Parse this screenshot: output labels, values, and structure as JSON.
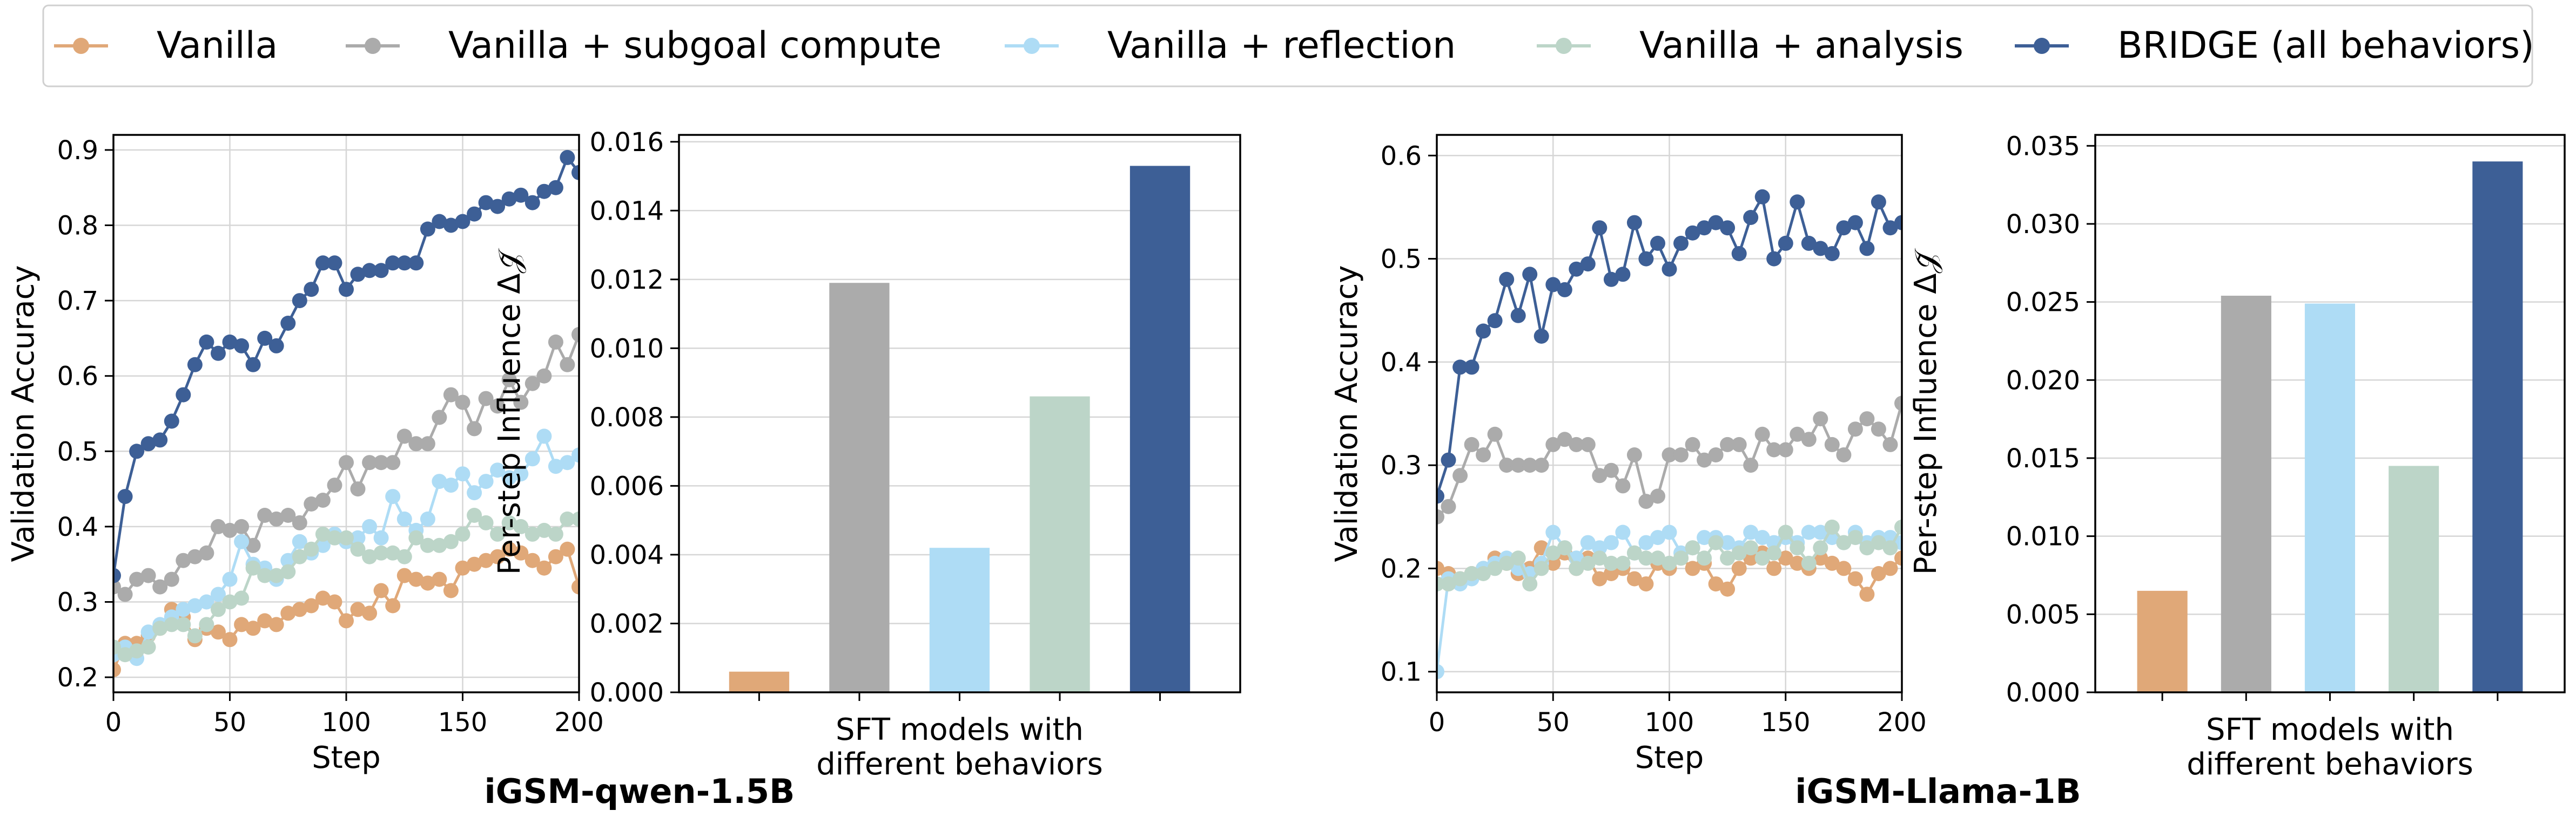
{
  "legend": [
    {
      "name": "Vanilla",
      "color": "#E0A878"
    },
    {
      "name": "Vanilla + subgoal compute",
      "color": "#ABABAB"
    },
    {
      "name": "Vanilla + reflection",
      "color": "#AEDCF5"
    },
    {
      "name": "Vanilla + analysis",
      "color": "#BCD5C8"
    },
    {
      "name": "BRIDGE (all behaviors)",
      "color": "#3D5F96"
    }
  ],
  "group_titles": [
    "iGSM-qwen-1.5B",
    "iGSM-Llama-1B"
  ],
  "chart_data": [
    {
      "type": "line",
      "xlabel": "Step",
      "ylabel": "Validation Accuracy",
      "xlim": [
        0,
        200
      ],
      "ylim": [
        0.18,
        0.92
      ],
      "xticks": [
        0,
        50,
        100,
        150,
        200
      ],
      "yticks": [
        0.2,
        0.3,
        0.4,
        0.5,
        0.6,
        0.7,
        0.8,
        0.9
      ],
      "ytick_labels": [
        "0.2",
        "0.3",
        "0.4",
        "0.5",
        "0.6",
        "0.7",
        "0.8",
        "0.9"
      ],
      "grid": true,
      "x": [
        0,
        5,
        10,
        15,
        20,
        25,
        30,
        35,
        40,
        45,
        50,
        55,
        60,
        65,
        70,
        75,
        80,
        85,
        90,
        95,
        100,
        105,
        110,
        115,
        120,
        125,
        130,
        135,
        140,
        145,
        150,
        155,
        160,
        165,
        170,
        175,
        180,
        185,
        190,
        195,
        200
      ],
      "series": [
        {
          "name": "Vanilla",
          "values": [
            0.21,
            0.245,
            0.245,
            0.255,
            0.265,
            0.29,
            0.28,
            0.25,
            0.265,
            0.26,
            0.25,
            0.27,
            0.265,
            0.275,
            0.27,
            0.285,
            0.29,
            0.295,
            0.305,
            0.3,
            0.275,
            0.29,
            0.285,
            0.315,
            0.295,
            0.335,
            0.33,
            0.325,
            0.33,
            0.315,
            0.345,
            0.35,
            0.355,
            0.36,
            0.37,
            0.365,
            0.355,
            0.345,
            0.36,
            0.37,
            0.32
          ]
        },
        {
          "name": "Vanilla + subgoal compute",
          "values": [
            0.32,
            0.31,
            0.33,
            0.335,
            0.32,
            0.33,
            0.355,
            0.36,
            0.365,
            0.4,
            0.395,
            0.4,
            0.375,
            0.415,
            0.41,
            0.415,
            0.405,
            0.43,
            0.435,
            0.455,
            0.485,
            0.45,
            0.485,
            0.485,
            0.485,
            0.52,
            0.51,
            0.51,
            0.545,
            0.575,
            0.565,
            0.53,
            0.57,
            0.56,
            0.595,
            0.565,
            0.59,
            0.6,
            0.645,
            0.615,
            0.655
          ]
        },
        {
          "name": "Vanilla + reflection",
          "values": [
            0.23,
            0.24,
            0.225,
            0.26,
            0.27,
            0.28,
            0.29,
            0.295,
            0.3,
            0.31,
            0.33,
            0.38,
            0.35,
            0.345,
            0.33,
            0.355,
            0.38,
            0.365,
            0.375,
            0.39,
            0.38,
            0.385,
            0.4,
            0.385,
            0.44,
            0.41,
            0.395,
            0.41,
            0.46,
            0.455,
            0.47,
            0.445,
            0.46,
            0.475,
            0.465,
            0.47,
            0.49,
            0.52,
            0.48,
            0.485,
            0.495
          ]
        },
        {
          "name": "Vanilla + analysis",
          "values": [
            0.24,
            0.23,
            0.235,
            0.24,
            0.265,
            0.27,
            0.27,
            0.255,
            0.27,
            0.29,
            0.3,
            0.305,
            0.345,
            0.335,
            0.335,
            0.34,
            0.36,
            0.37,
            0.39,
            0.385,
            0.385,
            0.37,
            0.36,
            0.365,
            0.365,
            0.36,
            0.385,
            0.375,
            0.375,
            0.38,
            0.39,
            0.415,
            0.405,
            0.39,
            0.405,
            0.4,
            0.39,
            0.395,
            0.39,
            0.41,
            0.41
          ]
        },
        {
          "name": "BRIDGE (all behaviors)",
          "values": [
            0.335,
            0.44,
            0.5,
            0.51,
            0.515,
            0.54,
            0.575,
            0.615,
            0.645,
            0.63,
            0.645,
            0.64,
            0.615,
            0.65,
            0.64,
            0.67,
            0.7,
            0.715,
            0.75,
            0.75,
            0.715,
            0.735,
            0.74,
            0.74,
            0.75,
            0.75,
            0.75,
            0.795,
            0.805,
            0.8,
            0.805,
            0.815,
            0.83,
            0.825,
            0.835,
            0.84,
            0.83,
            0.845,
            0.85,
            0.89,
            0.87
          ]
        }
      ]
    },
    {
      "type": "bar",
      "xlabel": "SFT models with\ndifferent behaviors",
      "ylabel": "Per-step Influence Δ𝒥̃",
      "categories": [
        "Vanilla",
        "Vanilla + subgoal compute",
        "Vanilla + reflection",
        "Vanilla + analysis",
        "BRIDGE (all behaviors)"
      ],
      "values": [
        0.0006,
        0.0119,
        0.0042,
        0.0086,
        0.0153
      ],
      "ylim": [
        0,
        0.0162
      ],
      "yticks": [
        0,
        0.002,
        0.004,
        0.006,
        0.008,
        0.01,
        0.012,
        0.014,
        0.016
      ],
      "ytick_labels": [
        "0.000",
        "0.002",
        "0.004",
        "0.006",
        "0.008",
        "0.010",
        "0.012",
        "0.014",
        "0.016"
      ],
      "grid": true
    },
    {
      "type": "line",
      "xlabel": "Step",
      "ylabel": "Validation Accuracy",
      "xlim": [
        0,
        200
      ],
      "ylim": [
        0.08,
        0.62
      ],
      "xticks": [
        0,
        50,
        100,
        150,
        200
      ],
      "yticks": [
        0.1,
        0.2,
        0.3,
        0.4,
        0.5,
        0.6
      ],
      "ytick_labels": [
        "0.1",
        "0.2",
        "0.3",
        "0.4",
        "0.5",
        "0.6"
      ],
      "grid": true,
      "x": [
        0,
        5,
        10,
        15,
        20,
        25,
        30,
        35,
        40,
        45,
        50,
        55,
        60,
        65,
        70,
        75,
        80,
        85,
        90,
        95,
        100,
        105,
        110,
        115,
        120,
        125,
        130,
        135,
        140,
        145,
        150,
        155,
        160,
        165,
        170,
        175,
        180,
        185,
        190,
        195,
        200
      ],
      "series": [
        {
          "name": "Vanilla",
          "values": [
            0.2,
            0.195,
            0.19,
            0.195,
            0.2,
            0.21,
            0.205,
            0.195,
            0.2,
            0.22,
            0.205,
            0.215,
            0.2,
            0.21,
            0.19,
            0.195,
            0.2,
            0.19,
            0.185,
            0.205,
            0.2,
            0.21,
            0.2,
            0.205,
            0.185,
            0.18,
            0.2,
            0.21,
            0.215,
            0.2,
            0.21,
            0.205,
            0.2,
            0.21,
            0.205,
            0.2,
            0.19,
            0.175,
            0.195,
            0.2,
            0.21
          ]
        },
        {
          "name": "Vanilla + subgoal compute",
          "values": [
            0.25,
            0.26,
            0.29,
            0.32,
            0.31,
            0.33,
            0.3,
            0.3,
            0.3,
            0.3,
            0.32,
            0.325,
            0.32,
            0.32,
            0.29,
            0.295,
            0.28,
            0.31,
            0.265,
            0.27,
            0.31,
            0.31,
            0.32,
            0.305,
            0.31,
            0.32,
            0.32,
            0.3,
            0.33,
            0.315,
            0.315,
            0.33,
            0.325,
            0.345,
            0.32,
            0.31,
            0.335,
            0.345,
            0.335,
            0.32,
            0.36
          ]
        },
        {
          "name": "Vanilla + reflection",
          "values": [
            0.1,
            0.19,
            0.185,
            0.19,
            0.2,
            0.205,
            0.21,
            0.2,
            0.195,
            0.205,
            0.235,
            0.22,
            0.21,
            0.225,
            0.22,
            0.225,
            0.235,
            0.215,
            0.225,
            0.23,
            0.235,
            0.215,
            0.22,
            0.23,
            0.23,
            0.225,
            0.22,
            0.235,
            0.23,
            0.225,
            0.23,
            0.225,
            0.235,
            0.235,
            0.23,
            0.225,
            0.235,
            0.225,
            0.23,
            0.23,
            0.225
          ]
        },
        {
          "name": "Vanilla + analysis",
          "values": [
            0.185,
            0.185,
            0.19,
            0.195,
            0.195,
            0.2,
            0.205,
            0.21,
            0.185,
            0.2,
            0.215,
            0.22,
            0.2,
            0.205,
            0.21,
            0.205,
            0.205,
            0.215,
            0.21,
            0.21,
            0.205,
            0.21,
            0.22,
            0.21,
            0.225,
            0.21,
            0.215,
            0.22,
            0.21,
            0.215,
            0.235,
            0.22,
            0.205,
            0.22,
            0.24,
            0.225,
            0.23,
            0.22,
            0.225,
            0.22,
            0.24
          ]
        },
        {
          "name": "BRIDGE (all behaviors)",
          "values": [
            0.27,
            0.305,
            0.395,
            0.395,
            0.43,
            0.44,
            0.48,
            0.445,
            0.485,
            0.425,
            0.475,
            0.47,
            0.49,
            0.495,
            0.53,
            0.48,
            0.485,
            0.535,
            0.5,
            0.515,
            0.49,
            0.515,
            0.525,
            0.53,
            0.535,
            0.53,
            0.505,
            0.54,
            0.56,
            0.5,
            0.515,
            0.555,
            0.515,
            0.51,
            0.505,
            0.53,
            0.535,
            0.51,
            0.555,
            0.53,
            0.535
          ]
        }
      ]
    },
    {
      "type": "bar",
      "xlabel": "SFT models with\ndifferent behaviors",
      "ylabel": "Per-step Influence Δ𝒥̃",
      "categories": [
        "Vanilla",
        "Vanilla + subgoal compute",
        "Vanilla + reflection",
        "Vanilla + analysis",
        "BRIDGE (all behaviors)"
      ],
      "values": [
        0.0065,
        0.0254,
        0.0249,
        0.0145,
        0.034
      ],
      "ylim": [
        0,
        0.0357
      ],
      "yticks": [
        0,
        0.005,
        0.01,
        0.015,
        0.02,
        0.025,
        0.03,
        0.035
      ],
      "ytick_labels": [
        "0.000",
        "0.005",
        "0.010",
        "0.015",
        "0.020",
        "0.025",
        "0.030",
        "0.035"
      ],
      "grid": true
    }
  ]
}
